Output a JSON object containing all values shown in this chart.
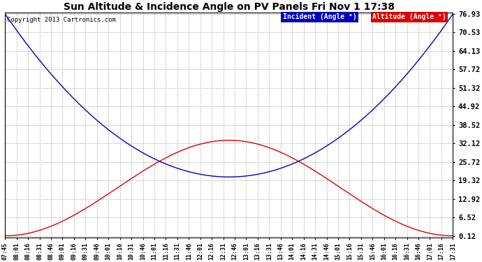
{
  "title": "Sun Altitude & Incidence Angle on PV Panels Fri Nov 1 17:38",
  "copyright": "Copyright 2013 Cartronics.com",
  "yticks": [
    0.12,
    6.52,
    12.92,
    19.32,
    25.72,
    32.12,
    38.52,
    44.92,
    51.32,
    57.72,
    64.13,
    70.53,
    76.93
  ],
  "xtick_labels": [
    "07:45",
    "08:01",
    "08:16",
    "08:31",
    "08:46",
    "09:01",
    "09:16",
    "09:31",
    "09:46",
    "10:01",
    "10:16",
    "10:31",
    "10:46",
    "11:01",
    "11:16",
    "11:31",
    "11:46",
    "12:01",
    "12:16",
    "12:31",
    "12:46",
    "13:01",
    "13:16",
    "13:31",
    "13:46",
    "14:01",
    "14:16",
    "14:31",
    "14:46",
    "15:01",
    "15:16",
    "15:31",
    "15:46",
    "16:01",
    "16:16",
    "16:31",
    "16:46",
    "17:01",
    "17:16",
    "17:31"
  ],
  "incident_color": "#0000bb",
  "altitude_color": "#dd0000",
  "bg_color": "#ffffff",
  "grid_color": "#aaaaaa",
  "legend_incident_bg": "#0000bb",
  "legend_altitude_bg": "#dd0000",
  "legend_text_color": "#ffffff",
  "title_color": "#000000",
  "copyright_color": "#000000",
  "ymin": 0.12,
  "ymax": 76.93,
  "incident_min": 20.5,
  "incident_max": 76.93,
  "altitude_max": 33.2,
  "altitude_min": 0.12
}
